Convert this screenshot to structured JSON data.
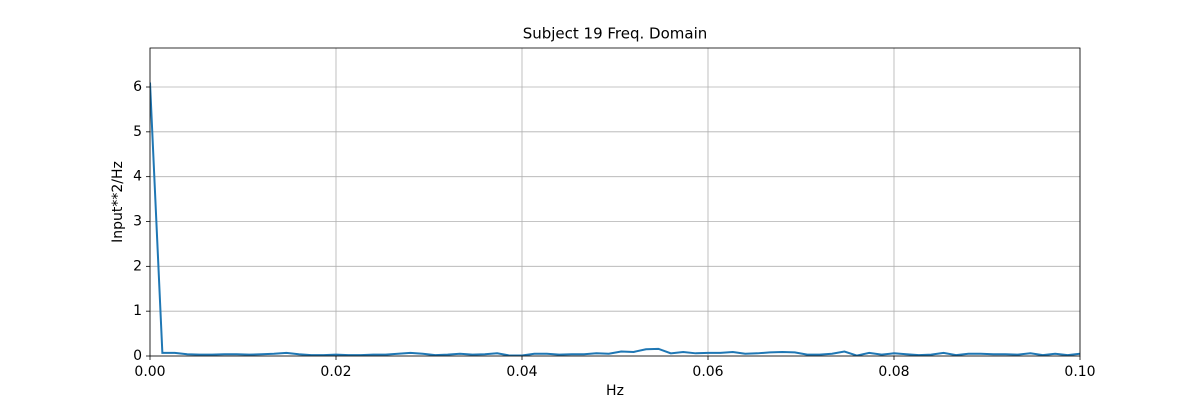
{
  "chart_data": {
    "type": "line",
    "title": "Subject 19 Freq. Domain",
    "xlabel": "Hz",
    "ylabel": "Input**2/Hz",
    "x": [
      0,
      0.00133,
      0.00267,
      0.004,
      0.00533,
      0.00667,
      0.008,
      0.00933,
      0.01067,
      0.012,
      0.01333,
      0.01467,
      0.016,
      0.01733,
      0.01867,
      0.02,
      0.02133,
      0.02267,
      0.024,
      0.02533,
      0.02667,
      0.028,
      0.02933,
      0.03067,
      0.032,
      0.03333,
      0.03467,
      0.036,
      0.03733,
      0.03867,
      0.04,
      0.04133,
      0.04267,
      0.044,
      0.04533,
      0.04667,
      0.048,
      0.04933,
      0.05067,
      0.052,
      0.05333,
      0.05467,
      0.056,
      0.05733,
      0.05867,
      0.06,
      0.06133,
      0.06267,
      0.064,
      0.06533,
      0.06667,
      0.068,
      0.06933,
      0.07067,
      0.072,
      0.07333,
      0.07467,
      0.076,
      0.07733,
      0.07867,
      0.08,
      0.08133,
      0.08267,
      0.084,
      0.08533,
      0.08667,
      0.088,
      0.08933,
      0.09067,
      0.092,
      0.09333,
      0.09467,
      0.096,
      0.09733,
      0.09867,
      0.1
    ],
    "series": [
      {
        "name": "Subject 19",
        "color": "#1f77b4",
        "values": [
          6.1,
          0.07,
          0.07,
          0.04,
          0.03,
          0.03,
          0.04,
          0.04,
          0.03,
          0.04,
          0.05,
          0.07,
          0.04,
          0.02,
          0.02,
          0.03,
          0.02,
          0.02,
          0.03,
          0.03,
          0.05,
          0.07,
          0.05,
          0.02,
          0.03,
          0.05,
          0.03,
          0.04,
          0.06,
          0.01,
          0.01,
          0.05,
          0.05,
          0.03,
          0.04,
          0.04,
          0.06,
          0.05,
          0.1,
          0.09,
          0.15,
          0.16,
          0.06,
          0.09,
          0.06,
          0.07,
          0.07,
          0.09,
          0.05,
          0.06,
          0.08,
          0.09,
          0.08,
          0.03,
          0.03,
          0.05,
          0.1,
          0.01,
          0.07,
          0.03,
          0.06,
          0.04,
          0.02,
          0.03,
          0.07,
          0.02,
          0.05,
          0.05,
          0.04,
          0.04,
          0.03,
          0.06,
          0.02,
          0.05,
          0.02,
          0.05
        ]
      }
    ],
    "xlim": [
      0,
      0.1
    ],
    "xticks": [
      {
        "value": 0,
        "label": "0.00"
      },
      {
        "value": 0.02,
        "label": "0.02"
      },
      {
        "value": 0.04,
        "label": "0.04"
      },
      {
        "value": 0.06,
        "label": "0.06"
      },
      {
        "value": 0.08,
        "label": "0.08"
      },
      {
        "value": 0.1,
        "label": "0.10"
      }
    ],
    "ylim": [
      0,
      6.87
    ],
    "yticks": [
      0,
      1,
      2,
      3,
      4,
      5,
      6
    ],
    "grid": true
  }
}
